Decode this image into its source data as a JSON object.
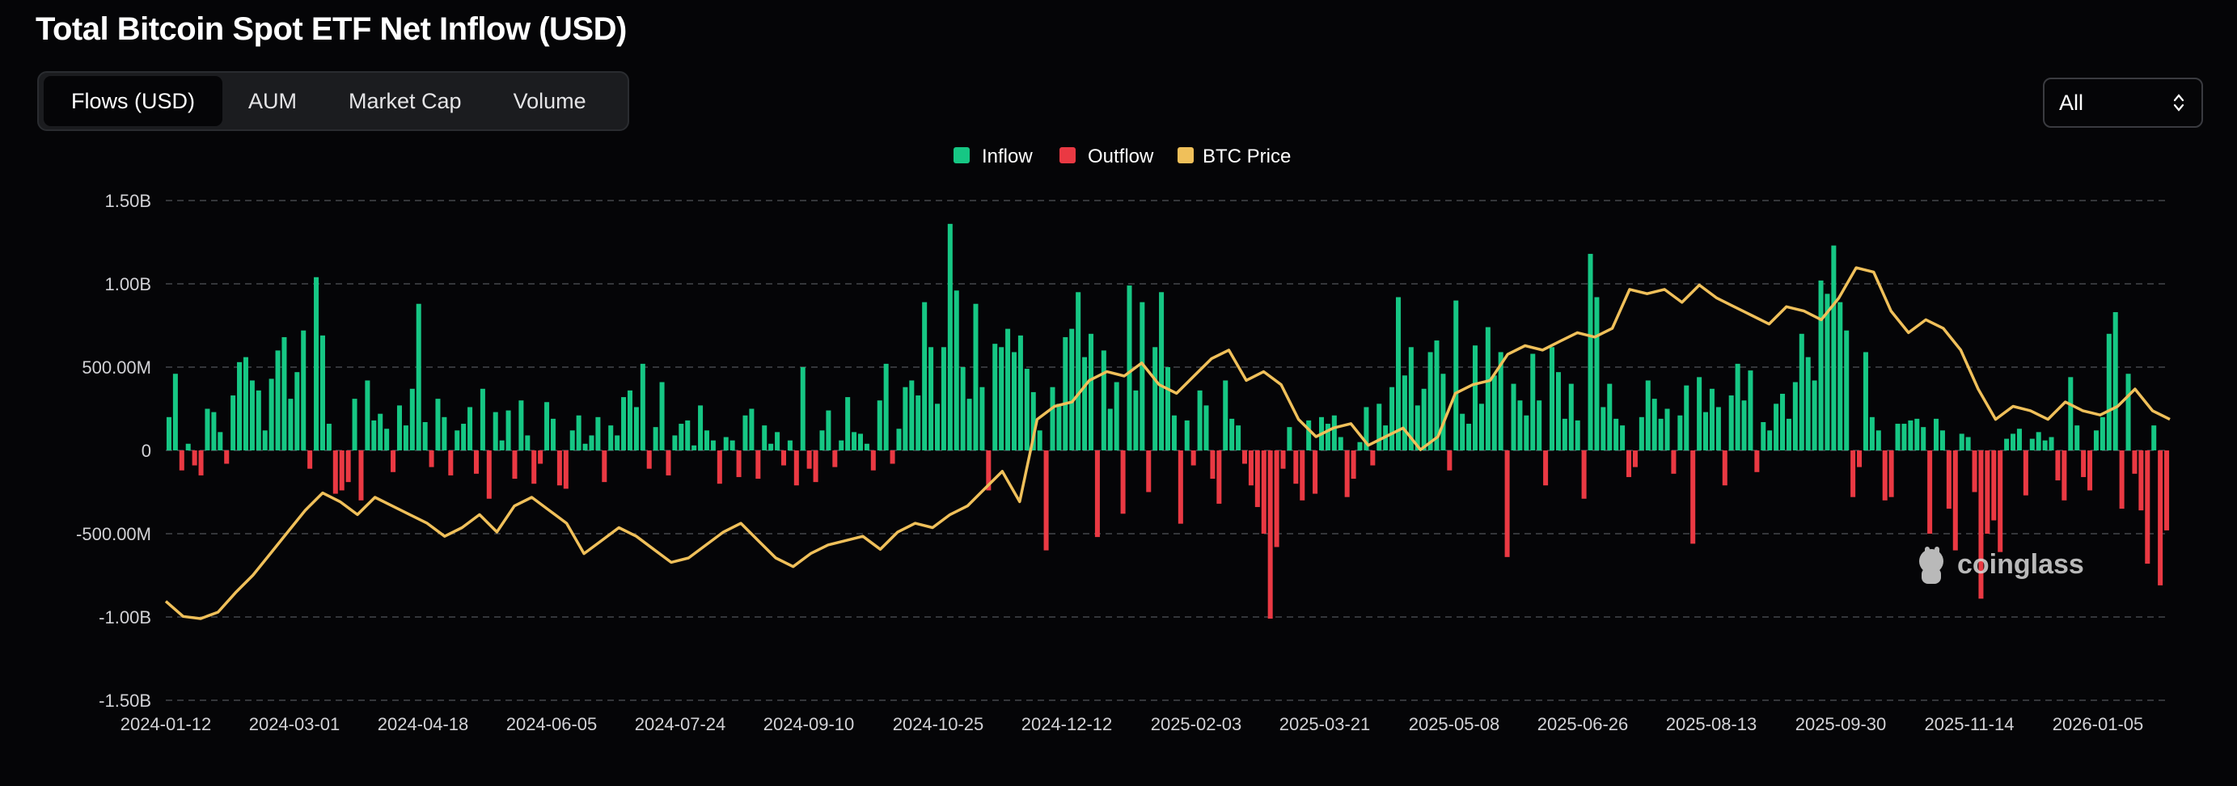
{
  "header": {
    "title": "Total Bitcoin Spot ETF Net Inflow (USD)"
  },
  "tabs": [
    {
      "label": "Flows (USD)",
      "active": true
    },
    {
      "label": "AUM",
      "active": false
    },
    {
      "label": "Market Cap",
      "active": false
    },
    {
      "label": "Volume",
      "active": false
    }
  ],
  "range_select": {
    "value": "All"
  },
  "watermark": "coinglass",
  "colors": {
    "inflow": "#16c784",
    "outflow": "#ea3943",
    "btc_price": "#f0c05a",
    "background": "#050507"
  },
  "chart_data": {
    "type": "bar",
    "title": "Total Bitcoin Spot ETF Net Inflow (USD)",
    "legend": [
      "Inflow",
      "Outflow",
      "BTC Price"
    ],
    "legend_position": "top-center",
    "y_ticks": [
      "1.50B",
      "1.00B",
      "500.00M",
      "0",
      "-500.00M",
      "-1.00B",
      "-1.50B"
    ],
    "ylim": [
      -1500000000,
      1500000000
    ],
    "x_ticks": [
      "2024-01-12",
      "2024-03-01",
      "2024-04-18",
      "2024-06-05",
      "2024-07-24",
      "2024-09-10",
      "2024-10-25",
      "2024-12-12",
      "2025-02-03",
      "2025-03-21",
      "2025-05-08",
      "2025-06-26",
      "2025-08-13",
      "2025-09-30",
      "2025-11-14",
      "2026-01-05"
    ],
    "grid": true,
    "flow_samples_millions": [
      200,
      460,
      -120,
      40,
      -90,
      -150,
      250,
      230,
      110,
      -80,
      330,
      530,
      560,
      420,
      360,
      120,
      430,
      600,
      680,
      310,
      470,
      720,
      -110,
      1040,
      690,
      160,
      -260,
      -240,
      -190,
      310,
      -300,
      420,
      180,
      220,
      130,
      -130,
      270,
      150,
      370,
      880,
      170,
      -100,
      310,
      200,
      -150,
      120,
      160,
      260,
      -140,
      370,
      -290,
      230,
      60,
      240,
      -170,
      300,
      90,
      -200,
      -80,
      290,
      190,
      -210,
      -230,
      120,
      210,
      40,
      90,
      200,
      -190,
      150,
      90,
      320,
      360,
      260,
      520,
      -110,
      140,
      410,
      -150,
      90,
      160,
      180,
      30,
      270,
      120,
      60,
      -200,
      80,
      60,
      -160,
      210,
      250,
      -170,
      150,
      40,
      110,
      -90,
      60,
      -210,
      500,
      -110,
      -190,
      120,
      240,
      -100,
      60,
      320,
      110,
      100,
      40,
      -120,
      300,
      520,
      -80,
      130,
      380,
      420,
      330,
      890,
      620,
      280,
      620,
      1360,
      960,
      500,
      310,
      880,
      380,
      -240,
      640,
      620,
      730,
      590,
      690,
      490,
      350,
      120,
      -600,
      380,
      280,
      680,
      730,
      950,
      560,
      700,
      -520,
      600,
      250,
      410,
      -380,
      990,
      360,
      890,
      -250,
      620,
      950,
      500,
      210,
      -440,
      180,
      -90,
      360,
      270,
      -170,
      -320,
      420,
      190,
      150,
      -80,
      -210,
      -340,
      -500,
      -1010,
      -580,
      -110,
      140,
      -200,
      -300,
      180,
      -260,
      200,
      160,
      210,
      80,
      -280,
      -170,
      50,
      260,
      -90,
      280,
      150,
      380,
      920,
      450,
      620,
      270,
      370,
      590,
      660,
      460,
      -120,
      900,
      220,
      160,
      630,
      280,
      740,
      450,
      590,
      -640,
      400,
      300,
      210,
      580,
      300,
      -210,
      620,
      470,
      190,
      400,
      180,
      -290,
      1180,
      920,
      260,
      400,
      190,
      150,
      -160,
      -100,
      200,
      420,
      310,
      190,
      250,
      -140,
      210,
      390,
      -560,
      440,
      230,
      370,
      260,
      -210,
      330,
      520,
      300,
      480,
      -130,
      170,
      120,
      280,
      340,
      190,
      410,
      700,
      560,
      420,
      1020,
      940,
      1230,
      890,
      720,
      -280,
      -100,
      590,
      200,
      120,
      -300,
      -280,
      160,
      160,
      180,
      190,
      140,
      -500,
      190,
      120,
      -350,
      -600,
      100,
      80,
      -250,
      -890,
      -500,
      -420,
      -610,
      70,
      100,
      130,
      -270,
      70,
      110,
      60,
      80,
      -180,
      -300,
      440,
      150,
      -160,
      -240,
      120,
      200,
      700,
      830,
      -350,
      460,
      -140,
      -360,
      -680,
      150,
      -810,
      -480
    ],
    "btc_price_note": "BTC price line on secondary (unlabeled) scale",
    "btc_price_series": [
      46000,
      42500,
      42000,
      43500,
      48000,
      52000,
      57000,
      62000,
      67000,
      71000,
      69000,
      66000,
      70000,
      68000,
      66000,
      64000,
      61000,
      63000,
      66000,
      62000,
      68000,
      70000,
      67000,
      64000,
      57000,
      60000,
      63000,
      61000,
      58000,
      55000,
      56000,
      59000,
      62000,
      64000,
      60000,
      56000,
      54000,
      57000,
      59000,
      60000,
      61000,
      58000,
      62000,
      64000,
      63000,
      66000,
      68000,
      72000,
      76000,
      69000,
      88000,
      91000,
      92000,
      97000,
      99000,
      98000,
      101000,
      96000,
      94000,
      98000,
      102000,
      104000,
      97000,
      99000,
      96000,
      88000,
      84000,
      86000,
      87000,
      82000,
      84000,
      86000,
      81000,
      84000,
      94000,
      96000,
      97000,
      103000,
      105000,
      104000,
      106000,
      108000,
      107000,
      109000,
      118000,
      117000,
      118000,
      115000,
      119000,
      116000,
      114000,
      112000,
      110000,
      114000,
      113000,
      111000,
      116000,
      123000,
      122000,
      113000,
      108000,
      111000,
      109000,
      104000,
      95000,
      88000,
      91000,
      90000,
      88000,
      92000,
      90000,
      89000,
      91000,
      95000,
      90000,
      88000
    ]
  }
}
